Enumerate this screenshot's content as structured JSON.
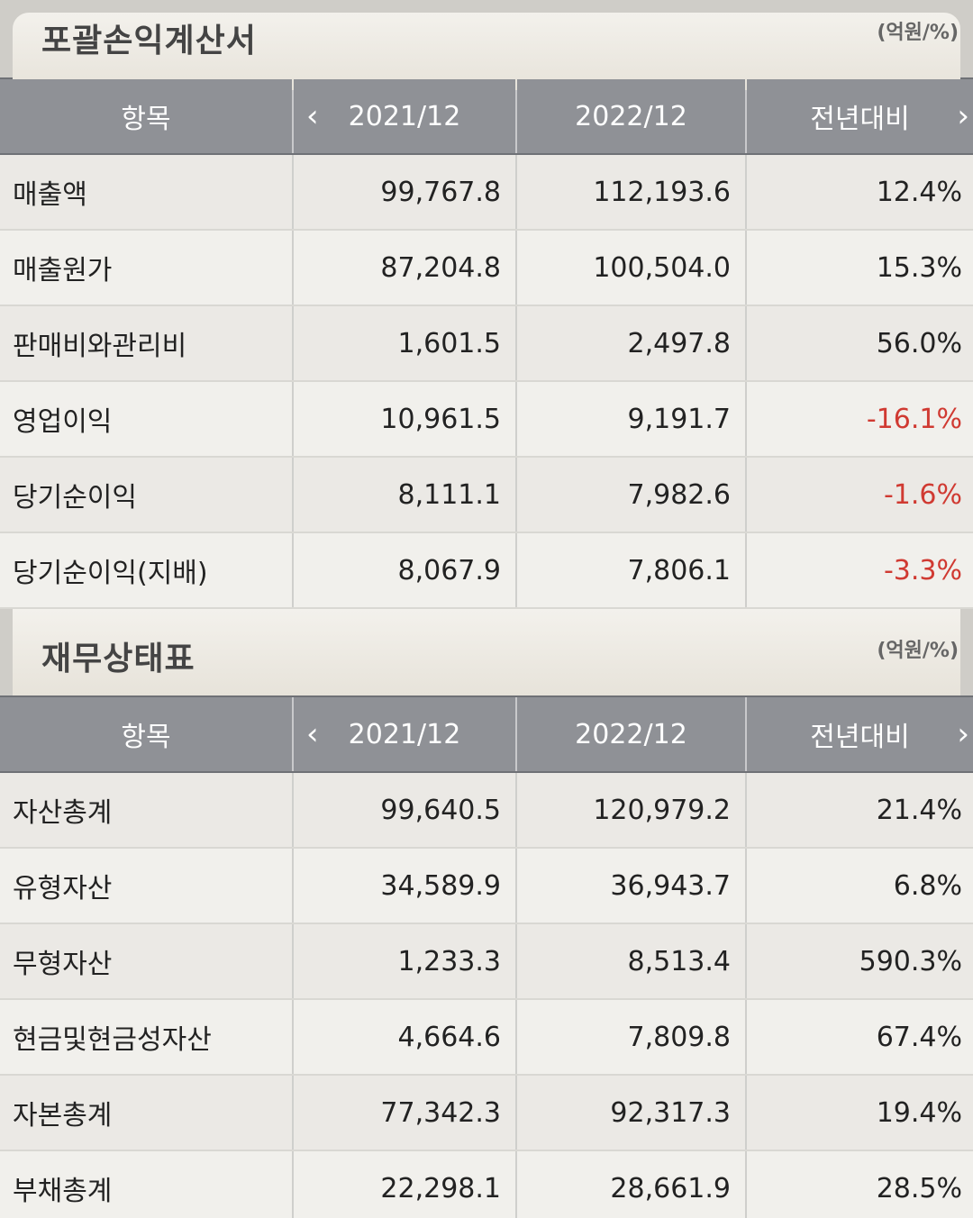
{
  "income_statement": {
    "title": "포괄손익계산서",
    "unit": "(억원/%)",
    "headers": {
      "item": "항목",
      "col1": "2021/12",
      "col2": "2022/12",
      "col3": "전년대비"
    },
    "rows": [
      {
        "label": "매출액",
        "v2021": "99,767.8",
        "v2022": "112,193.6",
        "yoy": "12.4%",
        "negative": false
      },
      {
        "label": "매출원가",
        "v2021": "87,204.8",
        "v2022": "100,504.0",
        "yoy": "15.3%",
        "negative": false
      },
      {
        "label": "판매비와관리비",
        "v2021": "1,601.5",
        "v2022": "2,497.8",
        "yoy": "56.0%",
        "negative": false
      },
      {
        "label": "영업이익",
        "v2021": "10,961.5",
        "v2022": "9,191.7",
        "yoy": "-16.1%",
        "negative": true
      },
      {
        "label": "당기순이익",
        "v2021": "8,111.1",
        "v2022": "7,982.6",
        "yoy": "-1.6%",
        "negative": true
      },
      {
        "label": "당기순이익(지배)",
        "v2021": "8,067.9",
        "v2022": "7,806.1",
        "yoy": "-3.3%",
        "negative": true
      }
    ]
  },
  "balance_sheet": {
    "title": "재무상태표",
    "unit": "(억원/%)",
    "headers": {
      "item": "항목",
      "col1": "2021/12",
      "col2": "2022/12",
      "col3": "전년대비"
    },
    "rows": [
      {
        "label": "자산총계",
        "v2021": "99,640.5",
        "v2022": "120,979.2",
        "yoy": "21.4%",
        "negative": false
      },
      {
        "label": "유형자산",
        "v2021": "34,589.9",
        "v2022": "36,943.7",
        "yoy": "6.8%",
        "negative": false
      },
      {
        "label": "무형자산",
        "v2021": "1,233.3",
        "v2022": "8,513.4",
        "yoy": "590.3%",
        "negative": false
      },
      {
        "label": "현금및현금성자산",
        "v2021": "4,664.6",
        "v2022": "7,809.8",
        "yoy": "67.4%",
        "negative": false
      },
      {
        "label": "자본총계",
        "v2021": "77,342.3",
        "v2022": "92,317.3",
        "yoy": "19.4%",
        "negative": false
      },
      {
        "label": "부채총계",
        "v2021": "22,298.1",
        "v2022": "28,661.9",
        "yoy": "28.5%",
        "negative": false
      }
    ]
  },
  "icons": {
    "prev": "chevron-left-icon",
    "next": "chevron-right-icon"
  },
  "colors": {
    "negative": "#d03a32",
    "header_bg": "#8f9196"
  }
}
